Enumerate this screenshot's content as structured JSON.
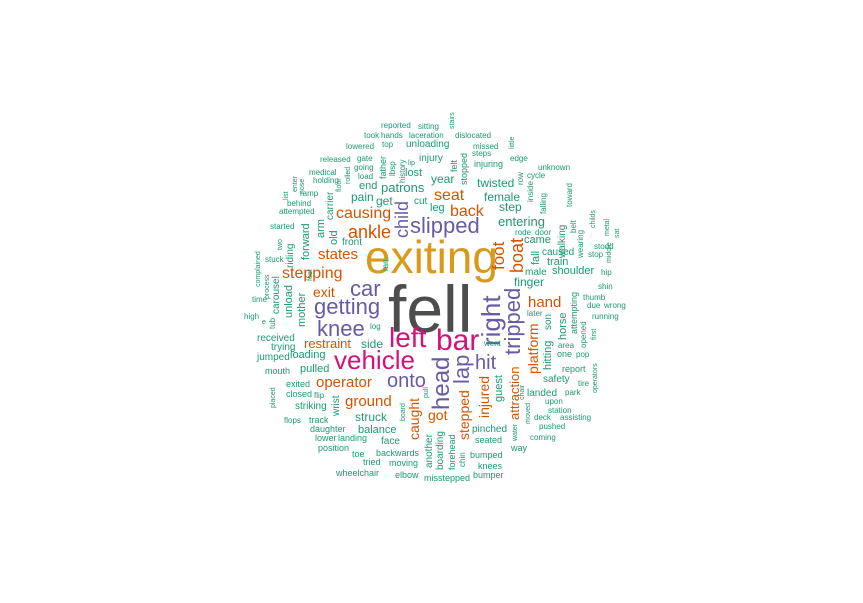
{
  "colors": {
    "gray": "#4d4d4d",
    "gold": "#d99a1c",
    "magenta": "#d4127a",
    "purple": "#6a5aa3",
    "orange": "#d35400",
    "teal": "#1b9a75"
  },
  "words": [
    {
      "text": "fell",
      "color": "gray"
    },
    {
      "text": "exiting",
      "color": "gold"
    },
    {
      "text": "bar",
      "color": "magenta"
    },
    {
      "text": "vehicle",
      "color": "magenta"
    },
    {
      "text": "left",
      "color": "magenta"
    },
    {
      "text": "head",
      "color": "purple"
    },
    {
      "text": "right",
      "color": "purple"
    },
    {
      "text": "getting",
      "color": "purple"
    },
    {
      "text": "slipped",
      "color": "purple"
    },
    {
      "text": "knee",
      "color": "purple"
    },
    {
      "text": "car",
      "color": "purple"
    },
    {
      "text": "tripped",
      "color": "purple"
    },
    {
      "text": "lap",
      "color": "purple"
    },
    {
      "text": "onto",
      "color": "purple"
    },
    {
      "text": "hit",
      "color": "purple"
    },
    {
      "text": "child",
      "color": "purple"
    },
    {
      "text": "ankle",
      "color": "orange"
    },
    {
      "text": "boat",
      "color": "orange"
    },
    {
      "text": "foot",
      "color": "orange"
    },
    {
      "text": "back",
      "color": "orange"
    },
    {
      "text": "seat",
      "color": "orange"
    },
    {
      "text": "causing",
      "color": "orange"
    },
    {
      "text": "stepping",
      "color": "orange"
    },
    {
      "text": "states",
      "color": "orange"
    },
    {
      "text": "exit",
      "color": "orange"
    },
    {
      "text": "operator",
      "color": "orange"
    },
    {
      "text": "ground",
      "color": "orange"
    },
    {
      "text": "restraint",
      "color": "orange"
    },
    {
      "text": "hand",
      "color": "orange"
    },
    {
      "text": "platform",
      "color": "orange"
    },
    {
      "text": "injured",
      "color": "orange"
    },
    {
      "text": "stepped",
      "color": "orange"
    },
    {
      "text": "caught",
      "color": "orange"
    },
    {
      "text": "got",
      "color": "orange"
    },
    {
      "text": "attraction",
      "color": "orange"
    },
    {
      "text": "patrons",
      "color": "teal"
    },
    {
      "text": "year",
      "color": "teal"
    },
    {
      "text": "leg",
      "color": "teal"
    },
    {
      "text": "lost",
      "color": "teal"
    },
    {
      "text": "pain",
      "color": "teal"
    },
    {
      "text": "get",
      "color": "teal"
    },
    {
      "text": "end",
      "color": "teal"
    },
    {
      "text": "cut",
      "color": "teal"
    },
    {
      "text": "injury",
      "color": "teal"
    },
    {
      "text": "unloading",
      "color": "teal"
    },
    {
      "text": "twisted",
      "color": "teal"
    },
    {
      "text": "female",
      "color": "teal"
    },
    {
      "text": "step",
      "color": "teal"
    },
    {
      "text": "entering",
      "color": "teal"
    },
    {
      "text": "came",
      "color": "teal"
    },
    {
      "text": "train",
      "color": "teal"
    },
    {
      "text": "finger",
      "color": "teal"
    },
    {
      "text": "shoulder",
      "color": "teal"
    },
    {
      "text": "male",
      "color": "teal"
    },
    {
      "text": "caused",
      "color": "teal"
    },
    {
      "text": "fall",
      "color": "teal"
    },
    {
      "text": "walking",
      "color": "teal"
    },
    {
      "text": "hitting",
      "color": "teal"
    },
    {
      "text": "horse",
      "color": "teal"
    },
    {
      "text": "son",
      "color": "teal"
    },
    {
      "text": "safety",
      "color": "teal"
    },
    {
      "text": "guest",
      "color": "teal"
    },
    {
      "text": "landed",
      "color": "teal"
    },
    {
      "text": "struck",
      "color": "teal"
    },
    {
      "text": "balance",
      "color": "teal"
    },
    {
      "text": "side",
      "color": "teal"
    },
    {
      "text": "pulled",
      "color": "teal"
    },
    {
      "text": "loading",
      "color": "teal"
    },
    {
      "text": "front",
      "color": "teal"
    },
    {
      "text": "mother",
      "color": "teal"
    },
    {
      "text": "unload",
      "color": "teal"
    },
    {
      "text": "forward",
      "color": "teal"
    },
    {
      "text": "arm",
      "color": "teal"
    },
    {
      "text": "old",
      "color": "teal"
    },
    {
      "text": "carrier",
      "color": "teal"
    },
    {
      "text": "riding",
      "color": "teal"
    },
    {
      "text": "carousel",
      "color": "teal"
    },
    {
      "text": "received",
      "color": "teal"
    },
    {
      "text": "trying",
      "color": "teal"
    },
    {
      "text": "jumped",
      "color": "teal"
    },
    {
      "text": "mouth",
      "color": "teal"
    },
    {
      "text": "exited",
      "color": "teal"
    },
    {
      "text": "closed",
      "color": "teal"
    },
    {
      "text": "striking",
      "color": "teal"
    },
    {
      "text": "wrist",
      "color": "teal"
    },
    {
      "text": "track",
      "color": "teal"
    },
    {
      "text": "daughter",
      "color": "teal"
    },
    {
      "text": "lower",
      "color": "teal"
    },
    {
      "text": "landing",
      "color": "teal"
    },
    {
      "text": "face",
      "color": "teal"
    },
    {
      "text": "position",
      "color": "teal"
    },
    {
      "text": "toe",
      "color": "teal"
    },
    {
      "text": "tried",
      "color": "teal"
    },
    {
      "text": "backwards",
      "color": "teal"
    },
    {
      "text": "moving",
      "color": "teal"
    },
    {
      "text": "elbow",
      "color": "teal"
    },
    {
      "text": "wheelchair",
      "color": "teal"
    },
    {
      "text": "boarding",
      "color": "teal"
    },
    {
      "text": "another",
      "color": "teal"
    },
    {
      "text": "forehead",
      "color": "teal"
    },
    {
      "text": "chin",
      "color": "teal"
    },
    {
      "text": "misstepped",
      "color": "teal"
    },
    {
      "text": "bumped",
      "color": "teal"
    },
    {
      "text": "knees",
      "color": "teal"
    },
    {
      "text": "bumper",
      "color": "teal"
    },
    {
      "text": "seated",
      "color": "teal"
    },
    {
      "text": "pinched",
      "color": "teal"
    },
    {
      "text": "way",
      "color": "teal"
    },
    {
      "text": "coming",
      "color": "teal"
    },
    {
      "text": "pushed",
      "color": "teal"
    },
    {
      "text": "assisting",
      "color": "teal"
    },
    {
      "text": "deck",
      "color": "teal"
    },
    {
      "text": "station",
      "color": "teal"
    },
    {
      "text": "upon",
      "color": "teal"
    },
    {
      "text": "park",
      "color": "teal"
    },
    {
      "text": "tire",
      "color": "teal"
    },
    {
      "text": "report",
      "color": "teal"
    },
    {
      "text": "one",
      "color": "teal"
    },
    {
      "text": "pop",
      "color": "teal"
    },
    {
      "text": "area",
      "color": "teal"
    },
    {
      "text": "went",
      "color": "teal"
    },
    {
      "text": "later",
      "color": "teal"
    },
    {
      "text": "log",
      "color": "teal"
    },
    {
      "text": "ran",
      "color": "teal"
    },
    {
      "text": "rode",
      "color": "teal"
    },
    {
      "text": "door",
      "color": "teal"
    },
    {
      "text": "stop",
      "color": "teal"
    },
    {
      "text": "stood",
      "color": "teal"
    },
    {
      "text": "hip",
      "color": "teal"
    },
    {
      "text": "shin",
      "color": "teal"
    },
    {
      "text": "thumb",
      "color": "teal"
    },
    {
      "text": "due",
      "color": "teal"
    },
    {
      "text": "wrong",
      "color": "teal"
    },
    {
      "text": "running",
      "color": "teal"
    },
    {
      "text": "first",
      "color": "teal"
    },
    {
      "text": "opened",
      "color": "teal"
    },
    {
      "text": "operators",
      "color": "teal"
    },
    {
      "text": "attempting",
      "color": "teal"
    },
    {
      "text": "belt",
      "color": "teal"
    },
    {
      "text": "toward",
      "color": "teal"
    },
    {
      "text": "wearing",
      "color": "teal"
    },
    {
      "text": "metal",
      "color": "teal"
    },
    {
      "text": "sat",
      "color": "teal"
    },
    {
      "text": "childs",
      "color": "teal"
    },
    {
      "text": "inside",
      "color": "teal"
    },
    {
      "text": "row",
      "color": "teal"
    },
    {
      "text": "cycle",
      "color": "teal"
    },
    {
      "text": "unknown",
      "color": "teal"
    },
    {
      "text": "edge",
      "color": "teal"
    },
    {
      "text": "little",
      "color": "teal"
    },
    {
      "text": "falling",
      "color": "teal"
    },
    {
      "text": "middle",
      "color": "teal"
    },
    {
      "text": "stairs",
      "color": "teal"
    },
    {
      "text": "sitting",
      "color": "teal"
    },
    {
      "text": "reported",
      "color": "teal"
    },
    {
      "text": "took",
      "color": "teal"
    },
    {
      "text": "hands",
      "color": "teal"
    },
    {
      "text": "laceration",
      "color": "teal"
    },
    {
      "text": "dislocated",
      "color": "teal"
    },
    {
      "text": "missed",
      "color": "teal"
    },
    {
      "text": "lowered",
      "color": "teal"
    },
    {
      "text": "top",
      "color": "teal"
    },
    {
      "text": "steps",
      "color": "teal"
    },
    {
      "text": "injuring",
      "color": "teal"
    },
    {
      "text": "released",
      "color": "teal"
    },
    {
      "text": "gate",
      "color": "teal"
    },
    {
      "text": "father",
      "color": "teal"
    },
    {
      "text": "lip",
      "color": "teal"
    },
    {
      "text": "medical",
      "color": "teal"
    },
    {
      "text": "going",
      "color": "teal"
    },
    {
      "text": "holding",
      "color": "teal"
    },
    {
      "text": "load",
      "color": "teal"
    },
    {
      "text": "history",
      "color": "teal"
    },
    {
      "text": "floor",
      "color": "teal"
    },
    {
      "text": "rolled",
      "color": "teal"
    },
    {
      "text": "felt",
      "color": "teal"
    },
    {
      "text": "stopped",
      "color": "teal"
    },
    {
      "text": "ramp",
      "color": "teal"
    },
    {
      "text": "behind",
      "color": "teal"
    },
    {
      "text": "attempted",
      "color": "teal"
    },
    {
      "text": "started",
      "color": "teal"
    },
    {
      "text": "two",
      "color": "teal"
    },
    {
      "text": "stuck",
      "color": "teal"
    },
    {
      "text": "complained",
      "color": "teal"
    },
    {
      "text": "process",
      "color": "teal"
    },
    {
      "text": "time",
      "color": "teal"
    },
    {
      "text": "high",
      "color": "teal"
    },
    {
      "text": "tub",
      "color": "teal"
    },
    {
      "text": "placed",
      "color": "teal"
    },
    {
      "text": "flops",
      "color": "teal"
    },
    {
      "text": "flip",
      "color": "teal"
    },
    {
      "text": "board",
      "color": "teal"
    },
    {
      "text": "pull",
      "color": "teal"
    },
    {
      "text": "enter",
      "color": "teal"
    },
    {
      "text": "nose",
      "color": "teal"
    },
    {
      "text": "lbsp",
      "color": "teal"
    },
    {
      "text": "chair",
      "color": "teal"
    },
    {
      "text": "water",
      "color": "teal"
    },
    {
      "text": "moved",
      "color": "teal"
    },
    {
      "text": "list",
      "color": "teal"
    },
    {
      "text": "e",
      "color": "teal"
    },
    {
      "text": "feet",
      "color": "teal"
    }
  ]
}
